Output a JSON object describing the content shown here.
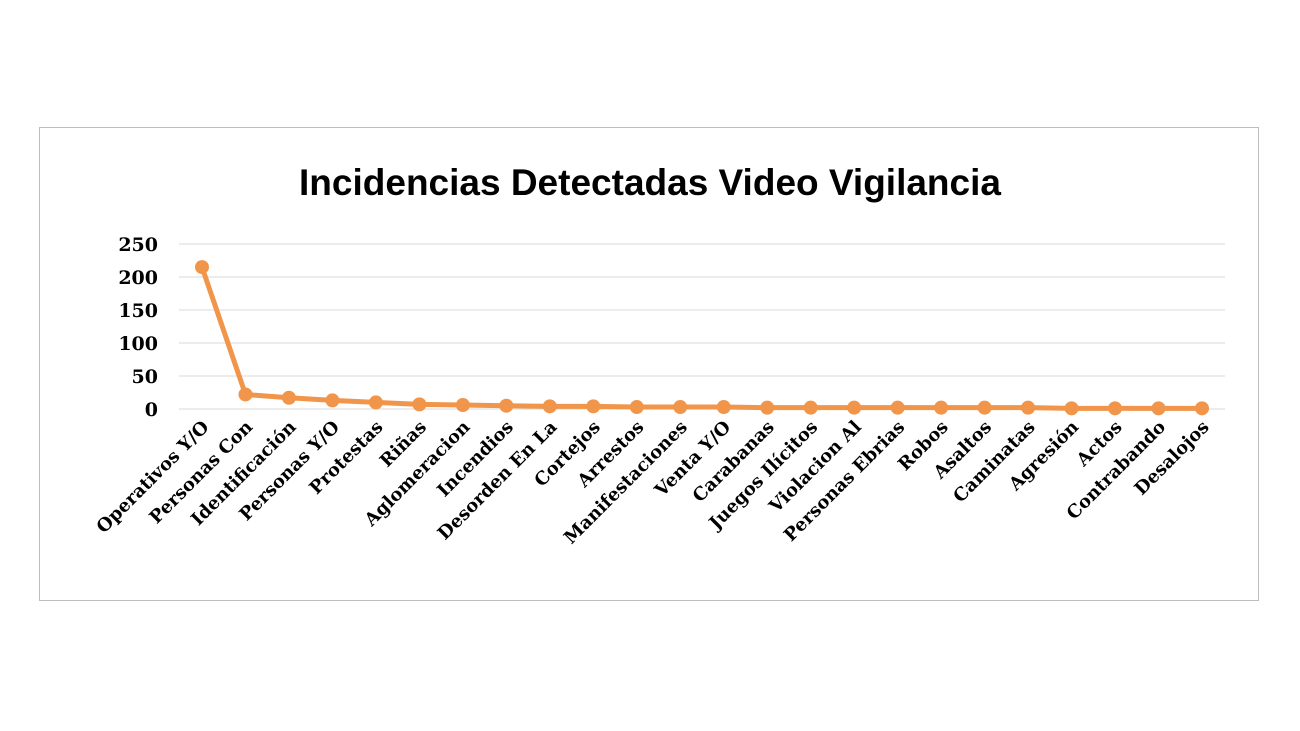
{
  "chart_data": {
    "type": "line",
    "title": "Incidencias Detectadas Video Vigilancia",
    "xlabel": "",
    "ylabel": "",
    "ylim": [
      0,
      250
    ],
    "yticks": [
      0,
      50,
      100,
      150,
      200,
      250
    ],
    "grid": true,
    "legend": "none",
    "line_color": "#F0954A",
    "categories": [
      "Operativos Y/O",
      "Personas Con",
      "Identificación",
      "Personas Y/O",
      "Protestas",
      "Riñas",
      "Aglomeracion",
      "Incendios",
      "Desorden En La",
      "Cortejos",
      "Arrestos",
      "Manifestaciones",
      "Venta Y/O",
      "Carabanas",
      "Juegos Ilícitos",
      "Violacion Al",
      "Personas Ebrias",
      "Robos",
      "Asaltos",
      "Caminatas",
      "Agresión",
      "Actos",
      "Contrabando",
      "Desalojos"
    ],
    "values": [
      215,
      22,
      17,
      13,
      10,
      7,
      6,
      5,
      4,
      4,
      3,
      3,
      3,
      2,
      2,
      2,
      2,
      2,
      2,
      2,
      1,
      1,
      1,
      1
    ]
  }
}
